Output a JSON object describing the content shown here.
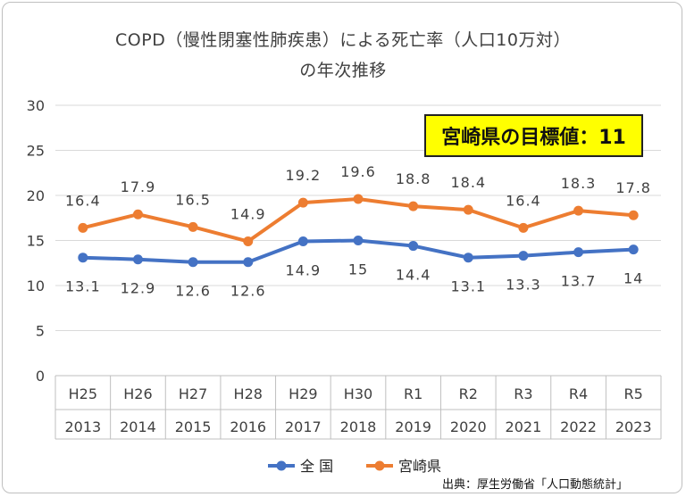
{
  "title_line1": "COPD（慢性閉塞性肺疾患）による死亡率（人口10万対）",
  "title_line2": "の年次推移",
  "target_label": "宮崎県の目標値：11",
  "source": "出典：厚生労働省「人口動態統計」",
  "colors": {
    "national": "#4472c4",
    "miyazaki": "#ed7d31",
    "grid": "#d9d9d9",
    "text": "#404040"
  },
  "chart_data": {
    "type": "line",
    "categories": [
      "H25",
      "H26",
      "H27",
      "H28",
      "H29",
      "H30",
      "R1",
      "R2",
      "R3",
      "R4",
      "R5"
    ],
    "categories_year": [
      "2013",
      "2014",
      "2015",
      "2016",
      "2017",
      "2018",
      "2019",
      "2020",
      "2021",
      "2022",
      "2023"
    ],
    "series": [
      {
        "name": "全 国",
        "values": [
          13.1,
          12.9,
          12.6,
          12.6,
          14.9,
          15,
          14.4,
          13.1,
          13.3,
          13.7,
          14
        ],
        "labels": [
          "13.1",
          "12.9",
          "12.6",
          "12.6",
          "14.9",
          "15",
          "14.4",
          "13.1",
          "13.3",
          "13.7",
          "14"
        ]
      },
      {
        "name": "宮崎県",
        "values": [
          16.4,
          17.9,
          16.5,
          14.9,
          19.2,
          19.6,
          18.8,
          18.4,
          16.4,
          18.3,
          17.8
        ],
        "labels": [
          "16.4",
          "17.9",
          "16.5",
          "14.9",
          "19.2",
          "19.6",
          "18.8",
          "18.4",
          "16.4",
          "18.3",
          "17.8"
        ]
      }
    ],
    "ylim": [
      0,
      30
    ],
    "yticks": [
      "0",
      "5",
      "10",
      "15",
      "20",
      "25",
      "30"
    ],
    "grid": true,
    "legend": "bottom"
  }
}
